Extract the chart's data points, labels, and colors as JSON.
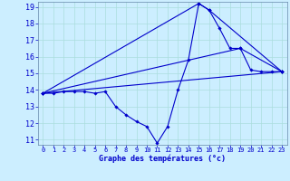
{
  "xlabel": "Graphe des températures (°c)",
  "bg_color": "#cceeff",
  "line_color": "#0000cc",
  "grid_color": "#aadddd",
  "xlim": [
    -0.5,
    23.5
  ],
  "ylim": [
    10.7,
    19.3
  ],
  "yticks": [
    11,
    12,
    13,
    14,
    15,
    16,
    17,
    18,
    19
  ],
  "xticks": [
    0,
    1,
    2,
    3,
    4,
    5,
    6,
    7,
    8,
    9,
    10,
    11,
    12,
    13,
    14,
    15,
    16,
    17,
    18,
    19,
    20,
    21,
    22,
    23
  ],
  "series": [
    {
      "x": [
        0,
        1,
        2,
        3,
        4,
        5,
        6,
        7,
        8,
        9,
        10,
        11,
        12,
        13,
        14,
        15,
        16,
        17,
        18,
        19,
        20,
        21,
        22,
        23
      ],
      "y": [
        13.8,
        13.8,
        13.9,
        13.9,
        13.9,
        13.8,
        13.9,
        13.0,
        12.5,
        12.1,
        11.8,
        10.8,
        11.8,
        14.0,
        15.8,
        19.2,
        18.8,
        17.7,
        16.5,
        16.5,
        15.2,
        15.1,
        15.1,
        15.1
      ]
    },
    {
      "x": [
        0,
        23
      ],
      "y": [
        13.8,
        15.1
      ]
    },
    {
      "x": [
        0,
        19,
        23
      ],
      "y": [
        13.8,
        16.5,
        15.1
      ]
    },
    {
      "x": [
        0,
        15,
        16,
        23
      ],
      "y": [
        13.8,
        19.2,
        18.8,
        15.1
      ]
    }
  ]
}
